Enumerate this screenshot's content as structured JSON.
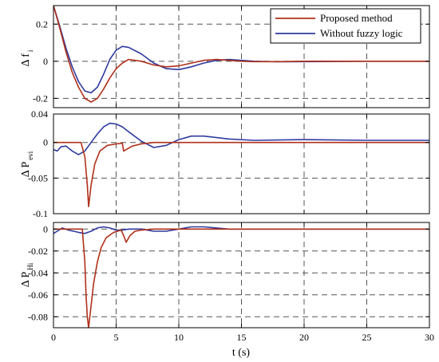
{
  "colors": {
    "proposed": "#b0301a",
    "fuzzy": "#2e3a9e",
    "grid": "#555555"
  },
  "xaxis": {
    "label": "t (s)",
    "range": [
      0,
      30
    ],
    "ticks": [
      0,
      5,
      10,
      15,
      20,
      25,
      30
    ]
  },
  "legend": {
    "placement": "top-right",
    "entries": [
      "Proposed method",
      "Without fuzzy logic"
    ]
  },
  "panels": [
    {
      "ylabel_main": "Δ f",
      "ylabel_sub": "i",
      "ylim": [
        -0.25,
        0.3
      ],
      "yticks": [
        0.2,
        0,
        -0.2
      ],
      "ytick_labels": [
        "0.2",
        "0",
        "-0.2"
      ]
    },
    {
      "ylabel_main": "Δ P",
      "ylabel_sub": "evi",
      "ylim": [
        -0.1,
        0.04
      ],
      "yticks": [
        0.04,
        0,
        -0.05,
        -0.1
      ],
      "ytick_labels": [
        "0.04",
        "0",
        "-0.05",
        "-0.1"
      ]
    },
    {
      "ylabel_main": "Δ P",
      "ylabel_sub": "Hi",
      "ylim": [
        -0.09,
        0.006
      ],
      "yticks": [
        0,
        -0.02,
        -0.04,
        -0.06,
        -0.08
      ],
      "ytick_labels": [
        "0",
        "-0.02",
        "-0.04",
        "-0.06",
        "-0.08"
      ]
    }
  ],
  "chart_data": [
    {
      "type": "line",
      "ylabel": "Δ f i",
      "xlabel": "",
      "xlim": [
        0,
        30
      ],
      "ylim": [
        -0.25,
        0.3
      ],
      "grid": true,
      "legend": "top-right",
      "series": [
        {
          "name": "Proposed method",
          "x": [
            0,
            0.5,
            1,
            1.5,
            2,
            2.5,
            3,
            3.5,
            4,
            4.5,
            5,
            5.5,
            6,
            7,
            8,
            9,
            10,
            11,
            12,
            13,
            14,
            15,
            16,
            18,
            20,
            25,
            30
          ],
          "y": [
            0.3,
            0.18,
            0.05,
            -0.06,
            -0.14,
            -0.2,
            -0.22,
            -0.2,
            -0.15,
            -0.09,
            -0.04,
            -0.01,
            0.01,
            0.0,
            -0.02,
            -0.03,
            -0.025,
            -0.01,
            0.005,
            0.01,
            0.005,
            0.0,
            -0.002,
            -0.002,
            0.0,
            0.0,
            0.0
          ]
        },
        {
          "name": "Without fuzzy logic",
          "x": [
            0,
            0.5,
            1,
            1.5,
            2,
            2.5,
            3,
            3.5,
            4,
            4.5,
            5,
            5.5,
            6,
            7,
            8,
            9,
            10,
            11,
            12,
            13,
            14,
            15,
            16,
            18,
            20,
            25,
            30
          ],
          "y": [
            0.3,
            0.19,
            0.07,
            -0.03,
            -0.11,
            -0.16,
            -0.17,
            -0.14,
            -0.07,
            0.01,
            0.06,
            0.08,
            0.075,
            0.04,
            -0.01,
            -0.04,
            -0.045,
            -0.03,
            -0.01,
            0.005,
            0.01,
            0.005,
            0.0,
            -0.003,
            -0.002,
            0.0,
            0.0
          ]
        }
      ]
    },
    {
      "type": "line",
      "ylabel": "Δ P evi",
      "xlabel": "",
      "xlim": [
        0,
        30
      ],
      "ylim": [
        -0.1,
        0.04
      ],
      "grid": true,
      "series": [
        {
          "name": "Proposed method",
          "x": [
            0,
            2.2,
            2.5,
            2.7,
            2.8,
            3.0,
            3.3,
            3.7,
            4.3,
            5.0,
            5.5,
            5.6,
            5.8,
            6.3,
            7.0,
            8.0,
            9.0,
            10,
            12,
            15,
            20,
            25,
            30
          ],
          "y": [
            0.0,
            0.0,
            -0.02,
            -0.06,
            -0.09,
            -0.06,
            -0.03,
            -0.012,
            -0.004,
            -0.002,
            -0.001,
            -0.012,
            -0.01,
            -0.005,
            -0.002,
            0.0,
            0.0,
            0.0,
            0.0,
            0.0,
            0.0,
            0.0,
            0.0
          ]
        },
        {
          "name": "Without fuzzy logic",
          "x": [
            0,
            0.3,
            0.6,
            1.0,
            1.5,
            2.0,
            2.5,
            3.0,
            3.5,
            4.0,
            4.5,
            5.0,
            5.5,
            6.0,
            7.0,
            8.0,
            9.0,
            10,
            11,
            12,
            14,
            16,
            20,
            25,
            30
          ],
          "y": [
            -0.01,
            -0.012,
            -0.006,
            -0.005,
            -0.012,
            -0.017,
            -0.012,
            0.0,
            0.012,
            0.022,
            0.027,
            0.026,
            0.022,
            0.015,
            0.002,
            -0.007,
            -0.004,
            0.004,
            0.009,
            0.009,
            0.005,
            0.003,
            0.004,
            0.003,
            0.003
          ]
        }
      ]
    },
    {
      "type": "line",
      "ylabel": "Δ P Hi",
      "xlabel": "t (s)",
      "xlim": [
        0,
        30
      ],
      "ylim": [
        -0.09,
        0.006
      ],
      "grid": true,
      "series": [
        {
          "name": "Proposed method",
          "x": [
            0,
            2.3,
            2.5,
            2.6,
            2.7,
            2.8,
            3.0,
            3.2,
            3.5,
            3.8,
            4.2,
            4.8,
            5.4,
            5.6,
            5.8,
            6.1,
            6.5,
            7.0,
            8.0,
            10,
            15,
            20,
            30
          ],
          "y": [
            0.0,
            0.0,
            -0.03,
            -0.06,
            -0.08,
            -0.09,
            -0.07,
            -0.05,
            -0.03,
            -0.017,
            -0.008,
            -0.003,
            -0.001,
            -0.006,
            -0.012,
            -0.006,
            -0.002,
            -0.001,
            0.0,
            0.0,
            0.0,
            0.0,
            0.0
          ]
        },
        {
          "name": "Without fuzzy logic",
          "x": [
            0,
            0.3,
            0.7,
            1.2,
            2.0,
            2.5,
            3.0,
            3.5,
            4.0,
            4.5,
            5.0,
            5.5,
            6.0,
            7.0,
            8.0,
            9.0,
            10,
            11,
            12,
            13,
            14,
            16,
            20,
            25,
            30
          ],
          "y": [
            -0.004,
            -0.002,
            0.001,
            -0.001,
            -0.003,
            -0.004,
            -0.002,
            0.001,
            0.002,
            0.001,
            -0.001,
            -0.001,
            0.0,
            0.0,
            -0.002,
            -0.002,
            0.0,
            0.002,
            0.002,
            0.001,
            0.0,
            0.0,
            0.0,
            0.0,
            0.0
          ]
        }
      ]
    }
  ]
}
